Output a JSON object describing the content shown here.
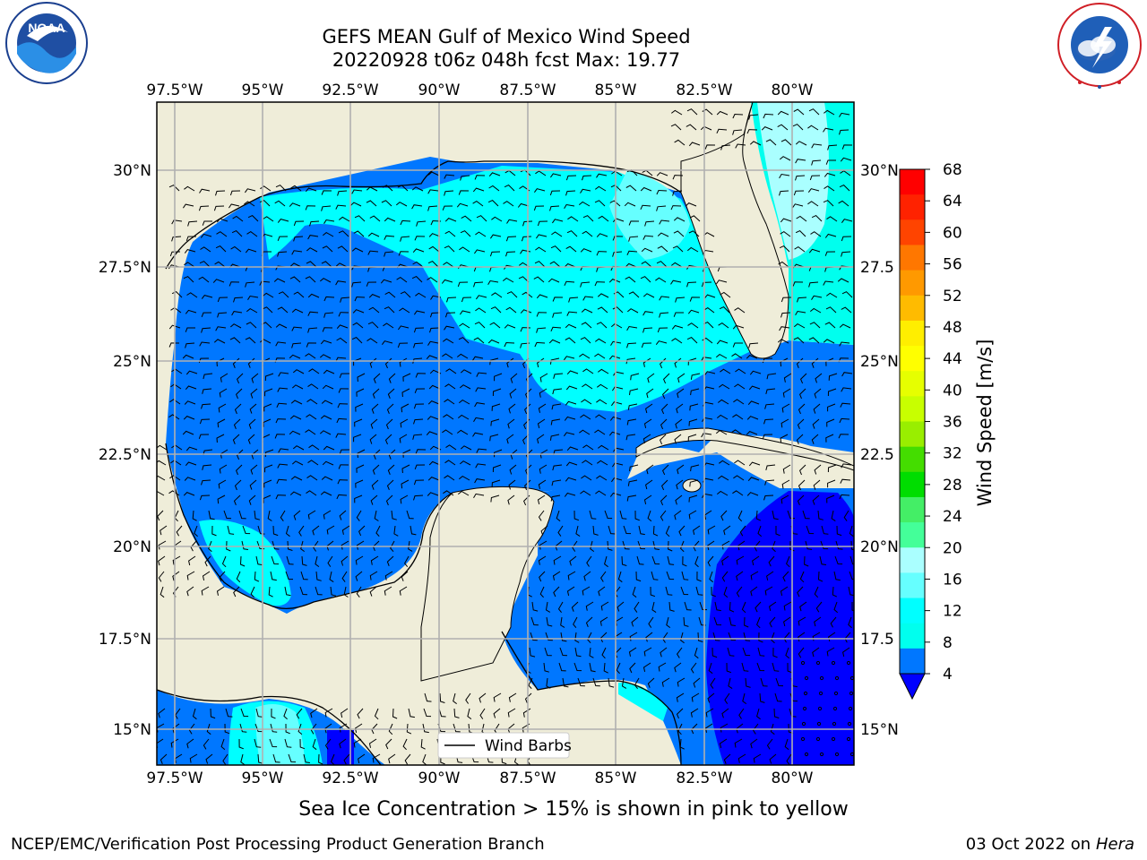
{
  "title": {
    "line1": "GEFS MEAN Gulf of Mexico Wind Speed",
    "line2": "20220928 t06z 048h fcst   Max: 19.77"
  },
  "caption": "Sea Ice Concentration > 15% is shown in pink to yellow",
  "footer": {
    "left": "NCEP/EMC/Verification Post Processing Product Generation Branch",
    "date": "03 Oct 2022 on",
    "host": "Hera"
  },
  "logos": {
    "left": "noaa-logo",
    "right": "national-weather-service-logo"
  },
  "map": {
    "lon_ticks": [
      "97.5°W",
      "95°W",
      "92.5°W",
      "90°W",
      "87.5°W",
      "85°W",
      "82.5°W",
      "80°W"
    ],
    "lat_ticks_left": [
      "30°N",
      "27.5°N",
      "25°N",
      "22.5°N",
      "20°N",
      "17.5°N",
      "15°N"
    ],
    "lat_ticks_right": [
      "30°N",
      "27.5",
      "25°N",
      "22.5",
      "20°N",
      "17.5",
      "15°N"
    ],
    "legend": "Wind Barbs",
    "colors": {
      "land": "#efedd9",
      "grid": "#b0b0b0"
    }
  },
  "colorbar": {
    "label": "Wind Speed [m/s]",
    "ticks": [
      "68",
      "64",
      "60",
      "56",
      "52",
      "48",
      "44",
      "40",
      "36",
      "32",
      "28",
      "24",
      "20",
      "16",
      "12",
      "8",
      "4"
    ],
    "colors": [
      "#ff0000",
      "#ff2200",
      "#ff4400",
      "#ff7700",
      "#ff9900",
      "#ffbb00",
      "#ffee00",
      "#ffff00",
      "#e6ff00",
      "#c8ff00",
      "#99ee00",
      "#44dd00",
      "#00dd00",
      "#44ee66",
      "#44ff99",
      "#aaffff",
      "#66ffff",
      "#00ffff",
      "#00ffee",
      "#0077ff"
    ],
    "under_color": "#0000ff"
  },
  "chart_data": {
    "type": "heatmap",
    "title": "GEFS MEAN Gulf of Mexico Wind Speed",
    "units": "m/s",
    "max_value": 19.77,
    "x_extent_deg": [
      -98.0,
      -78.0
    ],
    "y_extent_deg": [
      14.0,
      31.8
    ],
    "levels": [
      4,
      8,
      12,
      16,
      20,
      24,
      28,
      32,
      36,
      40,
      44,
      48,
      52,
      56,
      60,
      64,
      68
    ],
    "regions": [
      {
        "area": "northern Gulf shelf",
        "speed_band": "8-12"
      },
      {
        "area": "eastern Gulf / Florida shelf",
        "speed_band": "8-12"
      },
      {
        "area": "Atlantic east of Florida",
        "speed_band": "12-16"
      },
      {
        "area": "central & western Gulf",
        "speed_band": "4-8"
      },
      {
        "area": "Yucatan Channel / NW Caribbean",
        "speed_band": "4-8"
      },
      {
        "area": "western Caribbean east of 82W",
        "speed_band": "< 4"
      },
      {
        "area": "Bay of Campeche coast",
        "speed_band": "8-12"
      },
      {
        "area": "Gulf of Tehuantepec (Pacific)",
        "speed_band": "8-16"
      }
    ]
  }
}
